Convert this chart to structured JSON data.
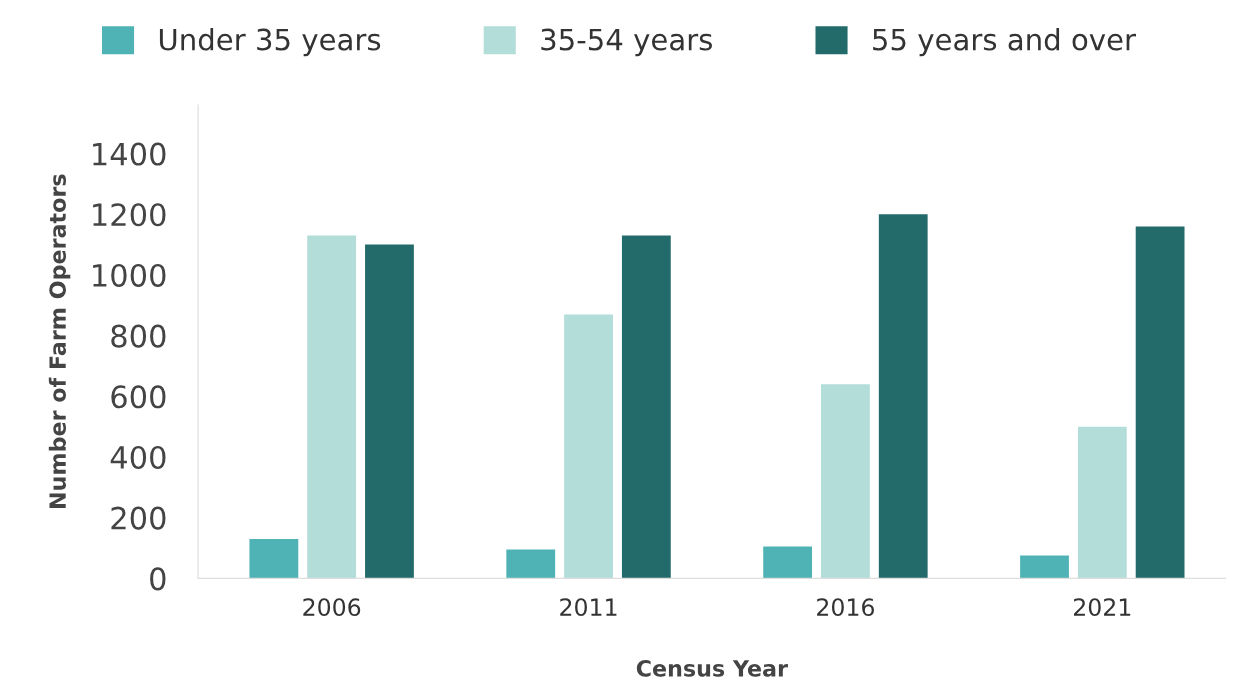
{
  "chart_data": {
    "type": "bar",
    "xlabel": "Census Year",
    "ylabel": "Number of Farm Operators",
    "categories": [
      "2006",
      "2011",
      "2016",
      "2021"
    ],
    "series": [
      {
        "name": "Under 35 years",
        "color": "#4fb3b5",
        "values": [
          130,
          95,
          105,
          75
        ]
      },
      {
        "name": "35-54 years",
        "color": "#b2ddd9",
        "values": [
          1130,
          870,
          640,
          500
        ]
      },
      {
        "name": "55 years and over",
        "color": "#236b6b",
        "values": [
          1100,
          1130,
          1200,
          1160
        ]
      }
    ],
    "ylim": [
      0,
      1560
    ],
    "yticks": [
      0,
      200,
      400,
      600,
      800,
      1000,
      1200,
      1400
    ],
    "grid": false,
    "legend": "top"
  }
}
